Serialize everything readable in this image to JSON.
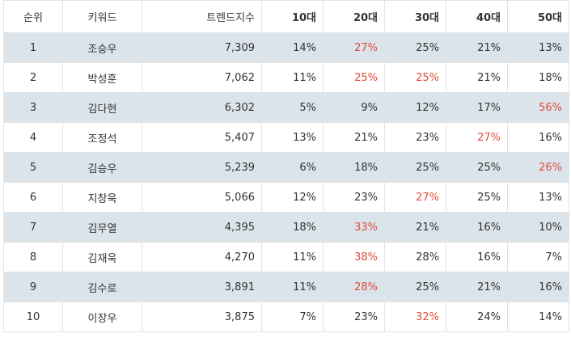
{
  "header": {
    "rank": "순위",
    "keyword": "키워드",
    "trend": "트렌드지수",
    "age10": "10대",
    "age20": "20대",
    "age30": "30대",
    "age40": "40대",
    "age50": "50대"
  },
  "colors": {
    "highlight": "#e04c3c",
    "row_shade": "#dbe4ea",
    "border": "#e3e3e3"
  },
  "rows": [
    {
      "rank": "1",
      "keyword": "조승우",
      "trend": "7,309",
      "a10": "14%",
      "a20": "27%",
      "a30": "25%",
      "a40": "21%",
      "a50": "13%",
      "highlight": "a20"
    },
    {
      "rank": "2",
      "keyword": "박성훈",
      "trend": "7,062",
      "a10": "11%",
      "a20": "25%",
      "a30": "25%",
      "a40": "21%",
      "a50": "18%",
      "highlight": [
        "a20",
        "a30"
      ]
    },
    {
      "rank": "3",
      "keyword": "김다현",
      "trend": "6,302",
      "a10": "5%",
      "a20": "9%",
      "a30": "12%",
      "a40": "17%",
      "a50": "56%",
      "highlight": "a50"
    },
    {
      "rank": "4",
      "keyword": "조정석",
      "trend": "5,407",
      "a10": "13%",
      "a20": "21%",
      "a30": "23%",
      "a40": "27%",
      "a50": "16%",
      "highlight": "a40"
    },
    {
      "rank": "5",
      "keyword": "김승우",
      "trend": "5,239",
      "a10": "6%",
      "a20": "18%",
      "a30": "25%",
      "a40": "25%",
      "a50": "26%",
      "highlight": "a50"
    },
    {
      "rank": "6",
      "keyword": "지창욱",
      "trend": "5,066",
      "a10": "12%",
      "a20": "23%",
      "a30": "27%",
      "a40": "25%",
      "a50": "13%",
      "highlight": "a30"
    },
    {
      "rank": "7",
      "keyword": "김무열",
      "trend": "4,395",
      "a10": "18%",
      "a20": "33%",
      "a30": "21%",
      "a40": "16%",
      "a50": "10%",
      "highlight": "a20"
    },
    {
      "rank": "8",
      "keyword": "김재욱",
      "trend": "4,270",
      "a10": "11%",
      "a20": "38%",
      "a30": "28%",
      "a40": "16%",
      "a50": "7%",
      "highlight": "a20"
    },
    {
      "rank": "9",
      "keyword": "김수로",
      "trend": "3,891",
      "a10": "11%",
      "a20": "28%",
      "a30": "25%",
      "a40": "21%",
      "a50": "16%",
      "highlight": "a20"
    },
    {
      "rank": "10",
      "keyword": "이장우",
      "trend": "3,875",
      "a10": "7%",
      "a20": "23%",
      "a30": "32%",
      "a40": "24%",
      "a50": "14%",
      "highlight": "a30"
    }
  ]
}
